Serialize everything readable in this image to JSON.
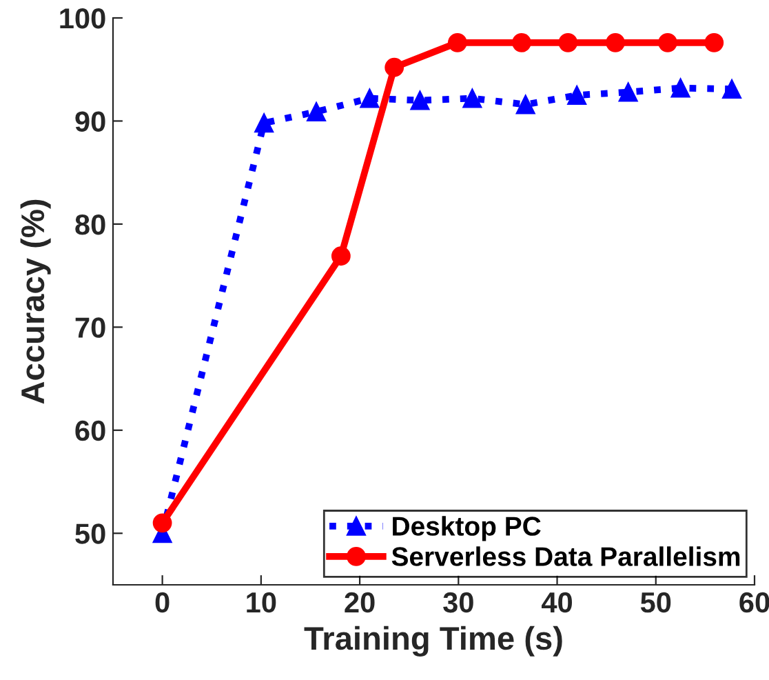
{
  "chart_data": {
    "type": "line",
    "xlabel": "Training Time (s)",
    "ylabel": "Accuracy (%)",
    "xlim": [
      -5,
      60
    ],
    "xticks": [
      0,
      10,
      20,
      30,
      40,
      50,
      60
    ],
    "ylim": [
      45,
      100
    ],
    "yticks": [
      50,
      60,
      70,
      80,
      90,
      100
    ],
    "grid": false,
    "legend": "bottom right",
    "series": [
      {
        "name": "Desktop PC",
        "color": "#0000ff",
        "marker": "triangle",
        "line_style": "dotted",
        "x": [
          0,
          10.3,
          15.6,
          21.0,
          26.1,
          31.4,
          36.8,
          42.0,
          47.2,
          52.5,
          57.7
        ],
        "values": [
          50,
          89.8,
          90.9,
          92.2,
          92.0,
          92.2,
          91.6,
          92.5,
          92.8,
          93.2,
          93.1
        ]
      },
      {
        "name": "Serverless Data Parallelism",
        "color": "#ff0000",
        "marker": "circle",
        "line_style": "solid",
        "x": [
          0,
          18.1,
          23.5,
          29.9,
          36.4,
          41.1,
          45.9,
          51.2,
          55.9
        ],
        "values": [
          51.0,
          76.9,
          95.2,
          97.6,
          97.6,
          97.6,
          97.6,
          97.6,
          97.6
        ]
      }
    ]
  }
}
